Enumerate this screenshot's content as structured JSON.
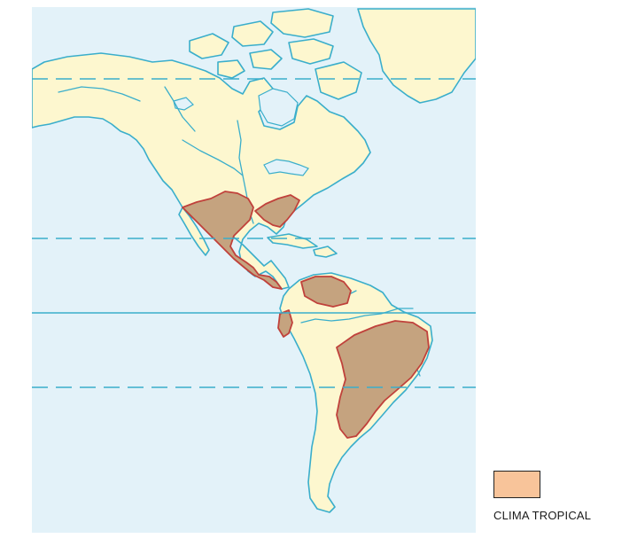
{
  "map": {
    "ocean_color": "#e3f2f9",
    "land_color": "#fdf7cf",
    "coast_color": "#3aaecb",
    "tropical_fill": "#c5a37f",
    "tropical_border": "#c0413b"
  },
  "legend": {
    "items": [
      {
        "label": "CLIMA TROPICAL",
        "color": "#f8c49a"
      }
    ]
  }
}
